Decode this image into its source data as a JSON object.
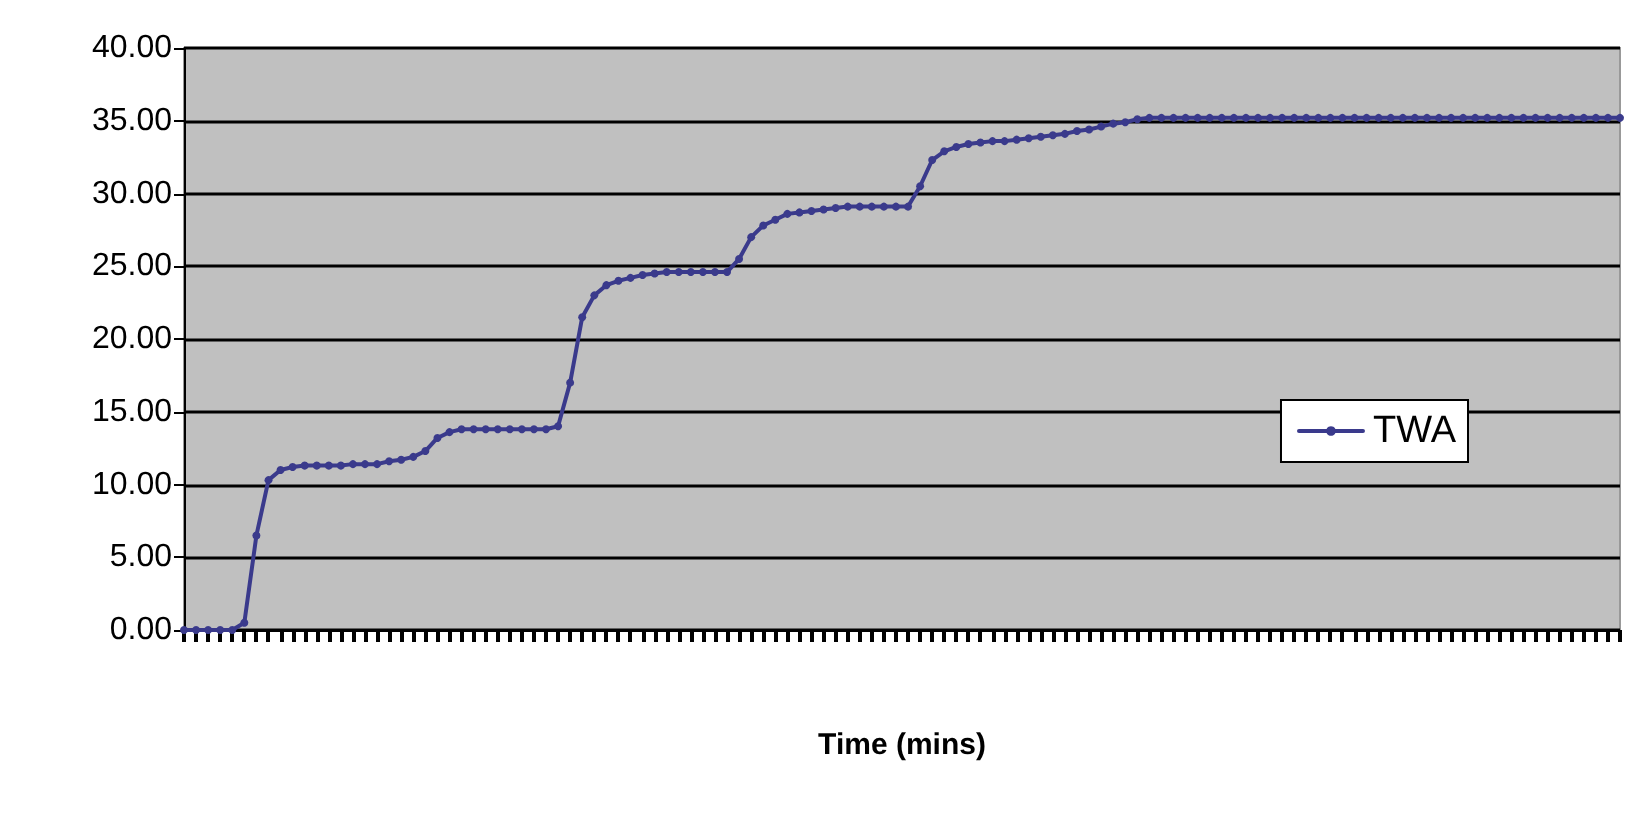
{
  "chart_data": {
    "type": "line",
    "xlabel": "Time (mins)",
    "categories": [
      null,
      null,
      null,
      null,
      null,
      null,
      null,
      null,
      null,
      null,
      null,
      null,
      null,
      null,
      null,
      null,
      null,
      null,
      null,
      null,
      null,
      null,
      null,
      null,
      null,
      null,
      null,
      null,
      null,
      null,
      null,
      null,
      null,
      null,
      null,
      null,
      null,
      null,
      null,
      null,
      null,
      null,
      null,
      null,
      null,
      null,
      null,
      null,
      null,
      null,
      null,
      null,
      null,
      null,
      null,
      null,
      null,
      null,
      null,
      null,
      null,
      null,
      null,
      null,
      null,
      null,
      null,
      null,
      null,
      null,
      null,
      null,
      null,
      null,
      null,
      null,
      null,
      null,
      null,
      null,
      null,
      null,
      null,
      null,
      null,
      null,
      null,
      null,
      null,
      null,
      null,
      null,
      null,
      null,
      null,
      null,
      null,
      null,
      null,
      null,
      null,
      null,
      null,
      null,
      null,
      null,
      null,
      null,
      null,
      null,
      null,
      null,
      null,
      null,
      null,
      null,
      null,
      null,
      null,
      null
    ],
    "series": [
      {
        "name": "TWA",
        "color": "#3a3a8c",
        "values": [
          0,
          0,
          0,
          0,
          0,
          0.5,
          6.5,
          10.3,
          11.0,
          11.2,
          11.3,
          11.3,
          11.3,
          11.3,
          11.4,
          11.4,
          11.4,
          11.6,
          11.7,
          11.9,
          12.3,
          13.2,
          13.6,
          13.8,
          13.8,
          13.8,
          13.8,
          13.8,
          13.8,
          13.8,
          13.8,
          14.0,
          17.0,
          21.5,
          23.0,
          23.7,
          24.0,
          24.2,
          24.4,
          24.5,
          24.6,
          24.6,
          24.6,
          24.6,
          24.6,
          24.6,
          25.5,
          27.0,
          27.8,
          28.2,
          28.6,
          28.7,
          28.8,
          28.9,
          29.0,
          29.1,
          29.1,
          29.1,
          29.1,
          29.1,
          29.1,
          30.5,
          32.3,
          32.9,
          33.2,
          33.4,
          33.5,
          33.6,
          33.6,
          33.7,
          33.8,
          33.9,
          34.0,
          34.1,
          34.3,
          34.4,
          34.6,
          34.8,
          34.9,
          35.1,
          35.2,
          35.2,
          35.2,
          35.2,
          35.2,
          35.2,
          35.2,
          35.2,
          35.2,
          35.2,
          35.2,
          35.2,
          35.2,
          35.2,
          35.2,
          35.2,
          35.2,
          35.2,
          35.2,
          35.2,
          35.2,
          35.2,
          35.2,
          35.2,
          35.2,
          35.2,
          35.2,
          35.2,
          35.2,
          35.2,
          35.2,
          35.2,
          35.2,
          35.2,
          35.2,
          35.2,
          35.2,
          35.2,
          35.2,
          35.2
        ]
      }
    ],
    "ylim": [
      0,
      40
    ],
    "yticks": [
      {
        "value": 0,
        "label": "0.00"
      },
      {
        "value": 5,
        "label": "5.00"
      },
      {
        "value": 10,
        "label": "10.00"
      },
      {
        "value": 15,
        "label": "15.00"
      },
      {
        "value": 20,
        "label": "20.00"
      },
      {
        "value": 25,
        "label": "25.00"
      },
      {
        "value": 30,
        "label": "30.00"
      },
      {
        "value": 35,
        "label": "35.00"
      },
      {
        "value": 40,
        "label": "40.00"
      }
    ],
    "grid": "y",
    "legend": "right",
    "marker": "circle",
    "line_style": "solid",
    "tick_labels": "y"
  }
}
